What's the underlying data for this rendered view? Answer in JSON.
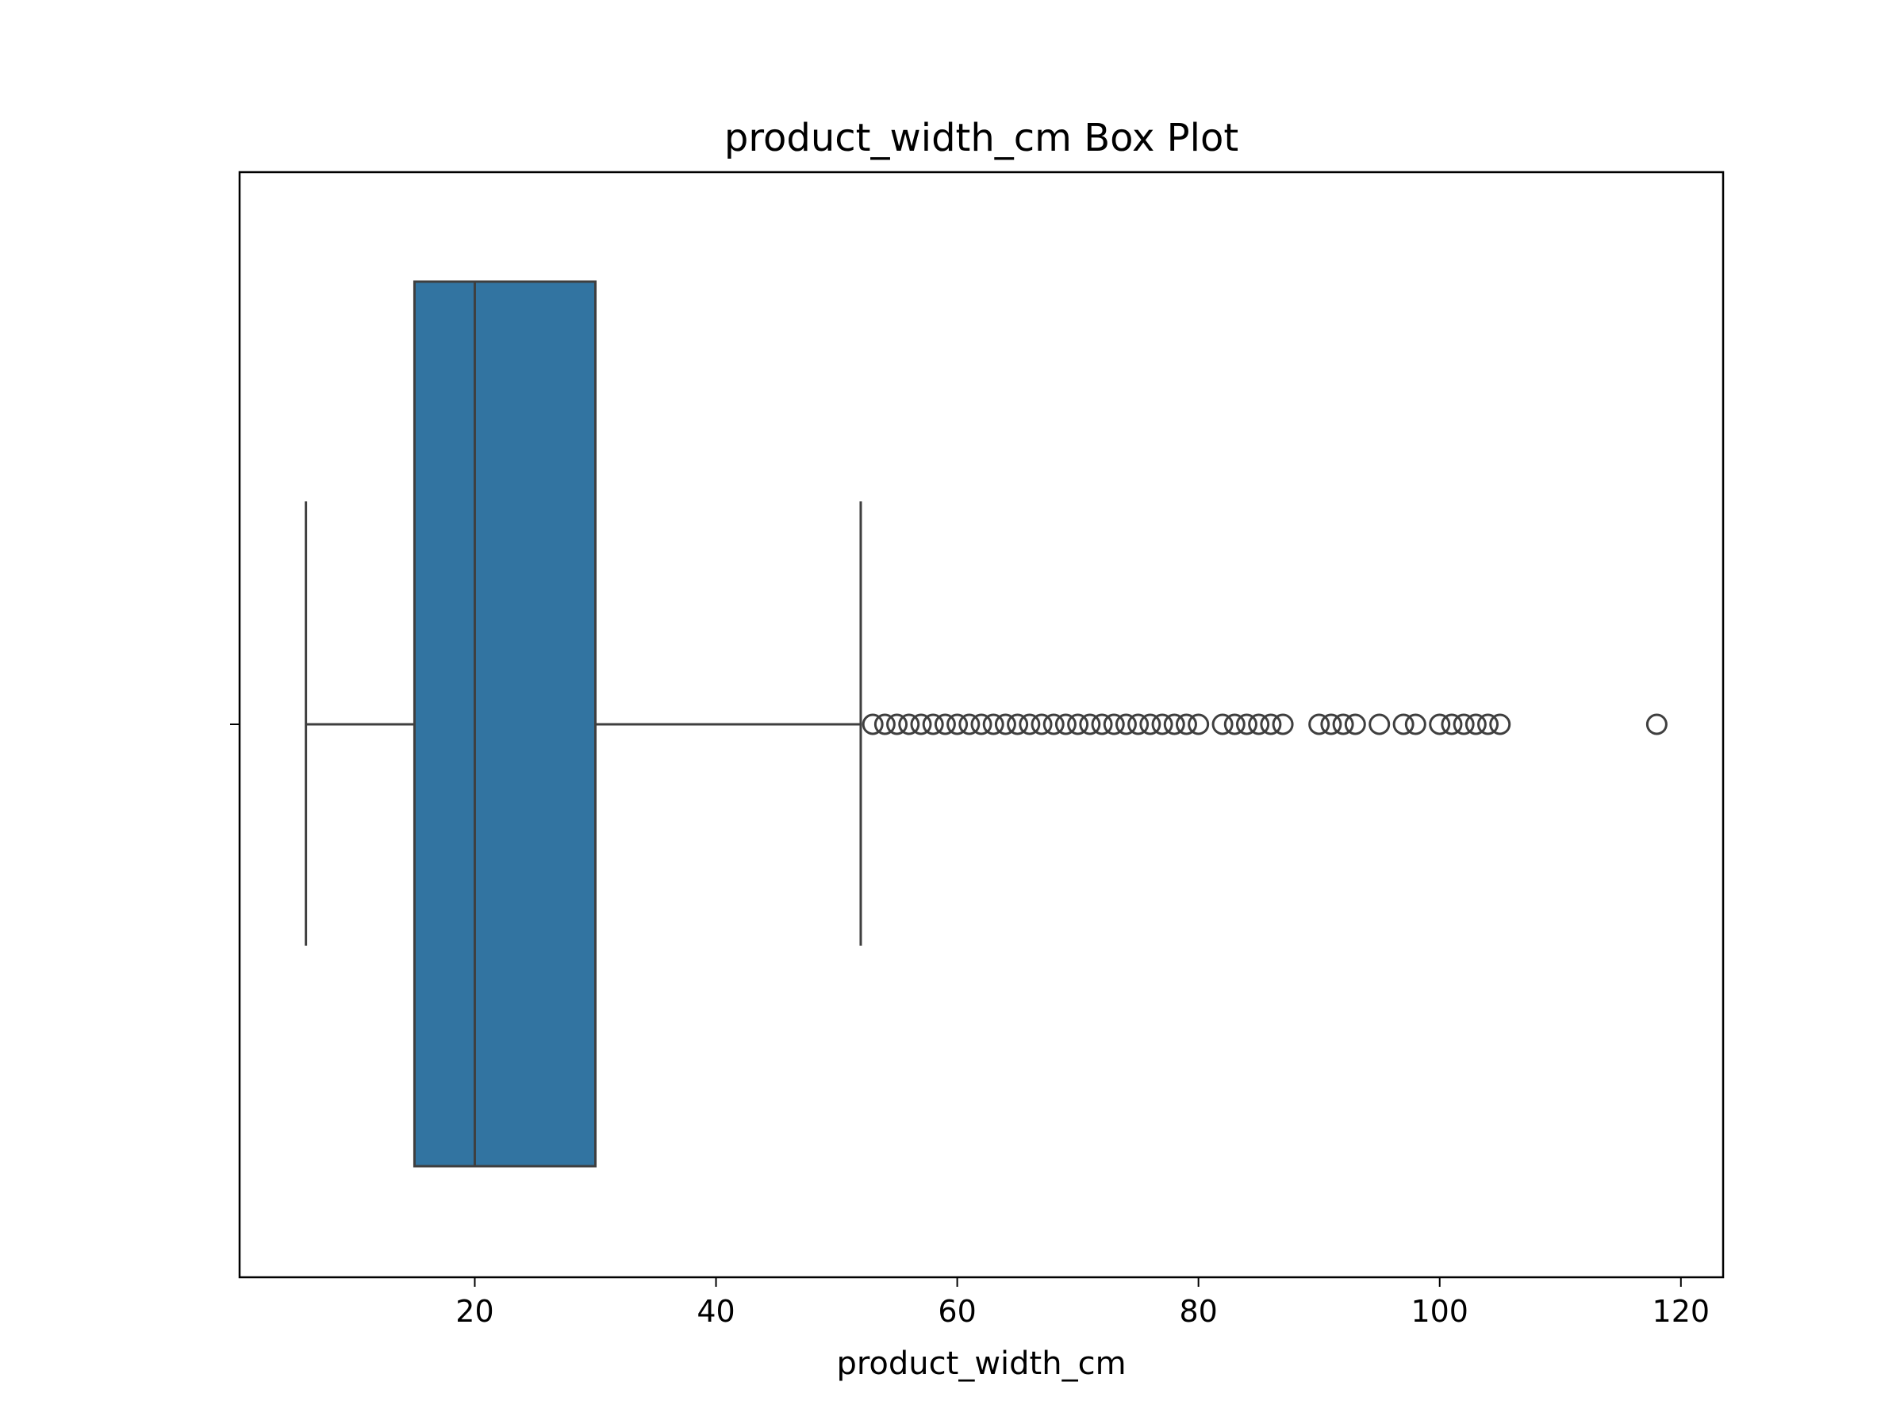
{
  "chart_data": {
    "type": "box",
    "title": "product_width_cm Box Plot",
    "xlabel": "product_width_cm",
    "ylabel": "",
    "xlim": [
      0.5,
      123.5
    ],
    "xticks": [
      20,
      40,
      60,
      80,
      100,
      120
    ],
    "orientation": "horizontal",
    "grid": false,
    "box": {
      "whisker_low": 6,
      "q1": 15,
      "median": 20,
      "q3": 30,
      "whisker_high": 52,
      "color": "#3274a1",
      "line_color": "#3f3f3f"
    },
    "outliers": [
      53,
      54,
      55,
      56,
      57,
      58,
      59,
      60,
      61,
      62,
      63,
      64,
      65,
      66,
      67,
      68,
      69,
      70,
      71,
      72,
      73,
      74,
      75,
      76,
      77,
      78,
      79,
      80,
      82,
      83,
      84,
      85,
      86,
      87,
      90,
      91,
      92,
      93,
      95,
      97,
      98,
      100,
      101,
      102,
      103,
      104,
      105,
      118
    ]
  }
}
